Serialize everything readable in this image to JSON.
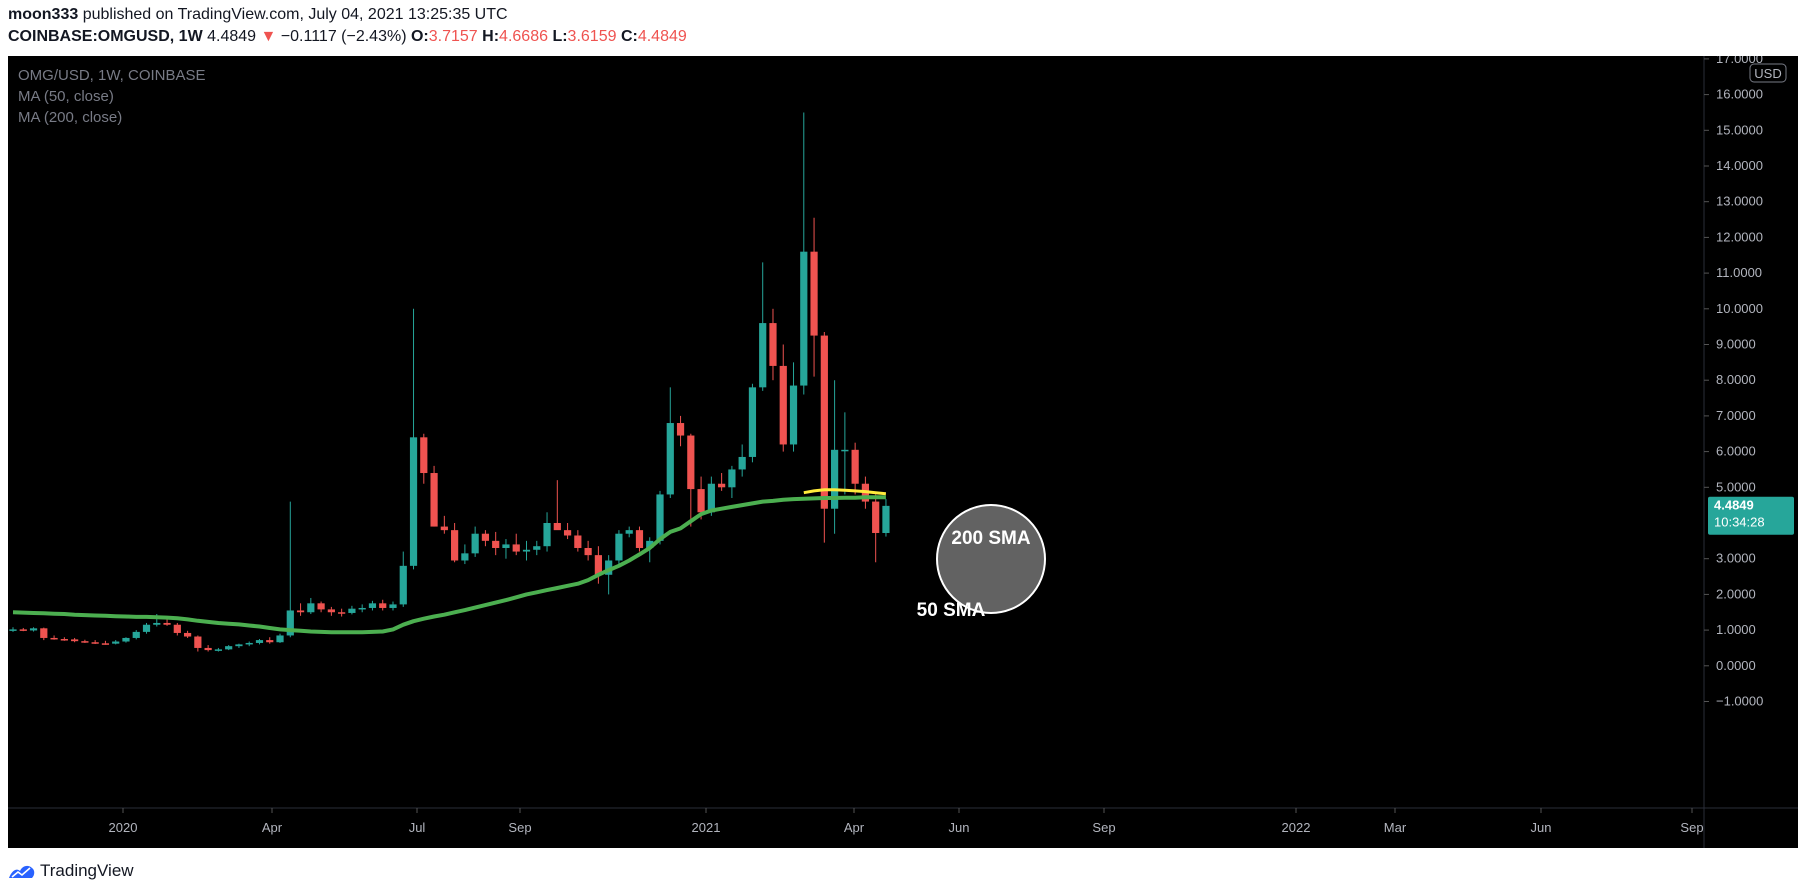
{
  "header": {
    "author": "moon333",
    "published_text": "published on TradingView.com, July 04, 2021 13:25:35 UTC",
    "symbol": "COINBASE:OMGUSD",
    "interval": "1W",
    "last": "4.4849",
    "change": "−0.1117 (−2.43%)",
    "open_label": "O:",
    "open": "3.7157",
    "high_label": "H:",
    "high": "4.6686",
    "low_label": "L:",
    "low": "3.6159",
    "close_label": "C:",
    "close": "4.4849"
  },
  "legend": {
    "series": "OMG/USD, 1W, COINBASE",
    "ma50": "MA (50, close)",
    "ma200": "MA (200, close)"
  },
  "price_axis": {
    "currency": "USD",
    "ticks": [
      "17.0000",
      "16.0000",
      "15.0000",
      "14.0000",
      "13.0000",
      "12.0000",
      "11.0000",
      "10.0000",
      "9.0000",
      "8.0000",
      "7.0000",
      "6.0000",
      "5.0000",
      "3.0000",
      "2.0000",
      "1.0000",
      "0.0000",
      "−1.0000"
    ],
    "last_price": "4.4849",
    "countdown": "10:34:28"
  },
  "annotations": {
    "sma200_label": "200 SMA",
    "sma50_label": "50 SMA"
  },
  "colors": {
    "background": "#000000",
    "up": "#26a69a",
    "down": "#ef5350",
    "ma50": "#4caf50",
    "ma200": "#ffeb3b",
    "axis_text": "#b2b5be"
  },
  "chart_data": {
    "type": "candlestick",
    "title": "OMG/USD, 1W, COINBASE",
    "xlabel": "",
    "ylabel": "",
    "ylim": [
      -1,
      17
    ],
    "x_ticks": [
      "2020",
      "Apr",
      "Jul",
      "Sep",
      "2021",
      "Apr",
      "Jun",
      "Sep",
      "2022",
      "Mar",
      "Jun",
      "Sep"
    ],
    "candles": [
      {
        "o": 1.0,
        "h": 1.08,
        "l": 0.95,
        "c": 1.02
      },
      {
        "o": 1.02,
        "h": 1.06,
        "l": 0.97,
        "c": 0.99
      },
      {
        "o": 0.99,
        "h": 1.08,
        "l": 0.96,
        "c": 1.05
      },
      {
        "o": 1.05,
        "h": 1.07,
        "l": 0.72,
        "c": 0.78
      },
      {
        "o": 0.78,
        "h": 0.85,
        "l": 0.73,
        "c": 0.75
      },
      {
        "o": 0.75,
        "h": 0.8,
        "l": 0.7,
        "c": 0.74
      },
      {
        "o": 0.74,
        "h": 0.78,
        "l": 0.66,
        "c": 0.69
      },
      {
        "o": 0.69,
        "h": 0.73,
        "l": 0.64,
        "c": 0.66
      },
      {
        "o": 0.66,
        "h": 0.72,
        "l": 0.61,
        "c": 0.63
      },
      {
        "o": 0.63,
        "h": 0.7,
        "l": 0.59,
        "c": 0.62
      },
      {
        "o": 0.62,
        "h": 0.72,
        "l": 0.6,
        "c": 0.68
      },
      {
        "o": 0.68,
        "h": 0.8,
        "l": 0.65,
        "c": 0.78
      },
      {
        "o": 0.78,
        "h": 1.0,
        "l": 0.74,
        "c": 0.95
      },
      {
        "o": 0.95,
        "h": 1.2,
        "l": 0.9,
        "c": 1.15
      },
      {
        "o": 1.15,
        "h": 1.45,
        "l": 1.1,
        "c": 1.2
      },
      {
        "o": 1.2,
        "h": 1.32,
        "l": 1.12,
        "c": 1.15
      },
      {
        "o": 1.15,
        "h": 1.2,
        "l": 0.85,
        "c": 0.92
      },
      {
        "o": 0.92,
        "h": 0.98,
        "l": 0.78,
        "c": 0.82
      },
      {
        "o": 0.82,
        "h": 0.85,
        "l": 0.4,
        "c": 0.5
      },
      {
        "o": 0.5,
        "h": 0.58,
        "l": 0.4,
        "c": 0.44
      },
      {
        "o": 0.44,
        "h": 0.5,
        "l": 0.4,
        "c": 0.46
      },
      {
        "o": 0.46,
        "h": 0.58,
        "l": 0.44,
        "c": 0.55
      },
      {
        "o": 0.55,
        "h": 0.62,
        "l": 0.5,
        "c": 0.6
      },
      {
        "o": 0.6,
        "h": 0.68,
        "l": 0.55,
        "c": 0.64
      },
      {
        "o": 0.64,
        "h": 0.75,
        "l": 0.6,
        "c": 0.72
      },
      {
        "o": 0.72,
        "h": 0.8,
        "l": 0.62,
        "c": 0.66
      },
      {
        "o": 0.66,
        "h": 0.9,
        "l": 0.64,
        "c": 0.85
      },
      {
        "o": 0.85,
        "h": 4.6,
        "l": 0.8,
        "c": 1.55
      },
      {
        "o": 1.55,
        "h": 1.75,
        "l": 1.4,
        "c": 1.5
      },
      {
        "o": 1.5,
        "h": 1.9,
        "l": 1.45,
        "c": 1.75
      },
      {
        "o": 1.75,
        "h": 1.8,
        "l": 1.5,
        "c": 1.58
      },
      {
        "o": 1.58,
        "h": 1.65,
        "l": 1.4,
        "c": 1.5
      },
      {
        "o": 1.5,
        "h": 1.6,
        "l": 1.38,
        "c": 1.48
      },
      {
        "o": 1.48,
        "h": 1.68,
        "l": 1.44,
        "c": 1.6
      },
      {
        "o": 1.6,
        "h": 1.72,
        "l": 1.5,
        "c": 1.62
      },
      {
        "o": 1.62,
        "h": 1.82,
        "l": 1.55,
        "c": 1.75
      },
      {
        "o": 1.75,
        "h": 1.85,
        "l": 1.55,
        "c": 1.62
      },
      {
        "o": 1.62,
        "h": 1.8,
        "l": 1.55,
        "c": 1.72
      },
      {
        "o": 1.72,
        "h": 3.2,
        "l": 1.65,
        "c": 2.8
      },
      {
        "o": 2.8,
        "h": 10.0,
        "l": 2.7,
        "c": 6.4
      },
      {
        "o": 6.4,
        "h": 6.5,
        "l": 5.1,
        "c": 5.4
      },
      {
        "o": 5.4,
        "h": 5.6,
        "l": 3.9,
        "c": 3.9
      },
      {
        "o": 3.9,
        "h": 4.2,
        "l": 3.7,
        "c": 3.8
      },
      {
        "o": 3.8,
        "h": 4.0,
        "l": 2.9,
        "c": 2.95
      },
      {
        "o": 2.95,
        "h": 3.4,
        "l": 2.85,
        "c": 3.15
      },
      {
        "o": 3.15,
        "h": 3.9,
        "l": 3.05,
        "c": 3.7
      },
      {
        "o": 3.7,
        "h": 3.8,
        "l": 3.35,
        "c": 3.5
      },
      {
        "o": 3.5,
        "h": 3.75,
        "l": 3.1,
        "c": 3.3
      },
      {
        "o": 3.3,
        "h": 3.55,
        "l": 3.0,
        "c": 3.4
      },
      {
        "o": 3.4,
        "h": 3.7,
        "l": 3.1,
        "c": 3.2
      },
      {
        "o": 3.2,
        "h": 3.5,
        "l": 2.95,
        "c": 3.25
      },
      {
        "o": 3.25,
        "h": 3.5,
        "l": 3.1,
        "c": 3.35
      },
      {
        "o": 3.35,
        "h": 4.3,
        "l": 3.2,
        "c": 4.0
      },
      {
        "o": 4.0,
        "h": 5.2,
        "l": 3.85,
        "c": 3.8
      },
      {
        "o": 3.8,
        "h": 4.0,
        "l": 3.55,
        "c": 3.65
      },
      {
        "o": 3.65,
        "h": 3.8,
        "l": 3.2,
        "c": 3.3
      },
      {
        "o": 3.3,
        "h": 3.5,
        "l": 2.95,
        "c": 3.1
      },
      {
        "o": 3.1,
        "h": 3.35,
        "l": 2.3,
        "c": 2.55
      },
      {
        "o": 2.55,
        "h": 3.1,
        "l": 2.0,
        "c": 2.95
      },
      {
        "o": 2.95,
        "h": 3.8,
        "l": 2.85,
        "c": 3.7
      },
      {
        "o": 3.7,
        "h": 3.9,
        "l": 3.6,
        "c": 3.8
      },
      {
        "o": 3.8,
        "h": 3.9,
        "l": 3.2,
        "c": 3.3
      },
      {
        "o": 3.3,
        "h": 3.6,
        "l": 2.9,
        "c": 3.5
      },
      {
        "o": 3.5,
        "h": 4.9,
        "l": 3.4,
        "c": 4.8
      },
      {
        "o": 4.8,
        "h": 7.8,
        "l": 4.7,
        "c": 6.8
      },
      {
        "o": 6.8,
        "h": 7.0,
        "l": 6.15,
        "c": 6.45
      },
      {
        "o": 6.45,
        "h": 6.5,
        "l": 3.9,
        "c": 4.95
      },
      {
        "o": 4.95,
        "h": 5.3,
        "l": 4.1,
        "c": 4.3
      },
      {
        "o": 4.3,
        "h": 5.3,
        "l": 4.2,
        "c": 5.1
      },
      {
        "o": 5.1,
        "h": 5.4,
        "l": 4.9,
        "c": 5.0
      },
      {
        "o": 5.0,
        "h": 5.6,
        "l": 4.7,
        "c": 5.5
      },
      {
        "o": 5.5,
        "h": 6.2,
        "l": 5.3,
        "c": 5.85
      },
      {
        "o": 5.85,
        "h": 7.9,
        "l": 5.7,
        "c": 7.8
      },
      {
        "o": 7.8,
        "h": 11.3,
        "l": 7.7,
        "c": 9.6
      },
      {
        "o": 9.6,
        "h": 10.0,
        "l": 8.0,
        "c": 8.4
      },
      {
        "o": 8.4,
        "h": 9.0,
        "l": 6.0,
        "c": 6.2
      },
      {
        "o": 6.2,
        "h": 8.5,
        "l": 6.0,
        "c": 7.85
      },
      {
        "o": 7.85,
        "h": 15.5,
        "l": 7.6,
        "c": 11.6
      },
      {
        "o": 11.6,
        "h": 12.55,
        "l": 8.1,
        "c": 9.25
      },
      {
        "o": 9.25,
        "h": 9.35,
        "l": 3.45,
        "c": 4.4
      },
      {
        "o": 4.4,
        "h": 8.0,
        "l": 3.7,
        "c": 6.05
      },
      {
        "o": 6.05,
        "h": 7.1,
        "l": 4.8,
        "c": 6.05
      },
      {
        "o": 6.05,
        "h": 6.25,
        "l": 4.8,
        "c": 5.1
      },
      {
        "o": 5.1,
        "h": 5.3,
        "l": 4.4,
        "c": 4.6
      },
      {
        "o": 4.6,
        "h": 4.8,
        "l": 2.9,
        "c": 3.72
      },
      {
        "o": 3.72,
        "h": 4.67,
        "l": 3.62,
        "c": 4.48
      }
    ],
    "series": [
      {
        "name": "MA (50, close)",
        "color": "#4caf50",
        "values": [
          1.5,
          1.49,
          1.48,
          1.47,
          1.46,
          1.45,
          1.43,
          1.42,
          1.41,
          1.4,
          1.39,
          1.38,
          1.37,
          1.37,
          1.36,
          1.35,
          1.33,
          1.3,
          1.26,
          1.23,
          1.2,
          1.18,
          1.16,
          1.13,
          1.1,
          1.06,
          1.02,
          1.0,
          0.98,
          0.96,
          0.95,
          0.94,
          0.94,
          0.94,
          0.94,
          0.95,
          0.96,
          1.02,
          1.15,
          1.25,
          1.32,
          1.38,
          1.43,
          1.5,
          1.56,
          1.63,
          1.7,
          1.77,
          1.84,
          1.92,
          2.0,
          2.06,
          2.12,
          2.18,
          2.24,
          2.3,
          2.4,
          2.55,
          2.68,
          2.8,
          2.95,
          3.12,
          3.3,
          3.55,
          3.75,
          3.85,
          4.05,
          4.25,
          4.35,
          4.4,
          4.45,
          4.5,
          4.55,
          4.6,
          4.62,
          4.65,
          4.67,
          4.68,
          4.69,
          4.7,
          4.7,
          4.71,
          4.71,
          4.72,
          4.72,
          4.72
        ]
      },
      {
        "name": "MA (200, close)",
        "color": "#ffeb3b",
        "values": [
          4.85,
          4.9,
          4.93,
          4.93,
          4.92,
          4.9,
          4.88,
          4.85,
          4.82
        ]
      }
    ]
  }
}
